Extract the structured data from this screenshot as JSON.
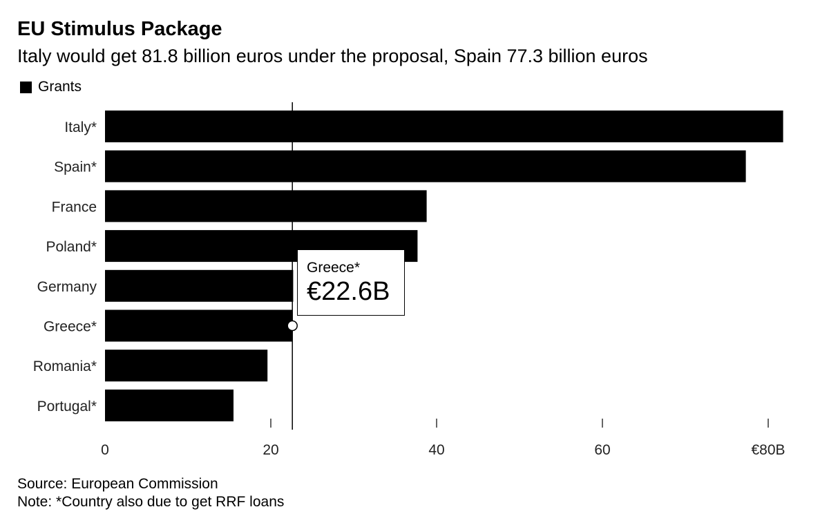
{
  "title": "EU Stimulus Package",
  "subtitle": "Italy would get 81.8 billion euros under the proposal, Spain 77.3 billion euros",
  "legend": {
    "label": "Grants",
    "color": "#000000"
  },
  "chart_data": {
    "type": "bar",
    "orientation": "horizontal",
    "categories": [
      "Italy*",
      "Spain*",
      "France",
      "Poland*",
      "Germany",
      "Greece*",
      "Romania*",
      "Portugal*"
    ],
    "series": [
      {
        "name": "Grants",
        "values": [
          81.8,
          77.3,
          38.8,
          37.7,
          22.7,
          22.6,
          19.6,
          15.5
        ]
      }
    ],
    "xlim": [
      0,
      80
    ],
    "xticks": [
      0,
      20,
      40,
      60,
      80
    ],
    "xtick_labels": [
      "0",
      "20",
      "40",
      "60",
      "€80B"
    ],
    "grid": false,
    "legend_position": "top-left",
    "bar_color": "#000000",
    "highlight": {
      "category": "Greece*",
      "value": 22.6
    }
  },
  "tooltip": {
    "country": "Greece*",
    "value": "€22.6B"
  },
  "source": "Source: European Commission",
  "note": "Note: *Country also due to get RRF loans"
}
